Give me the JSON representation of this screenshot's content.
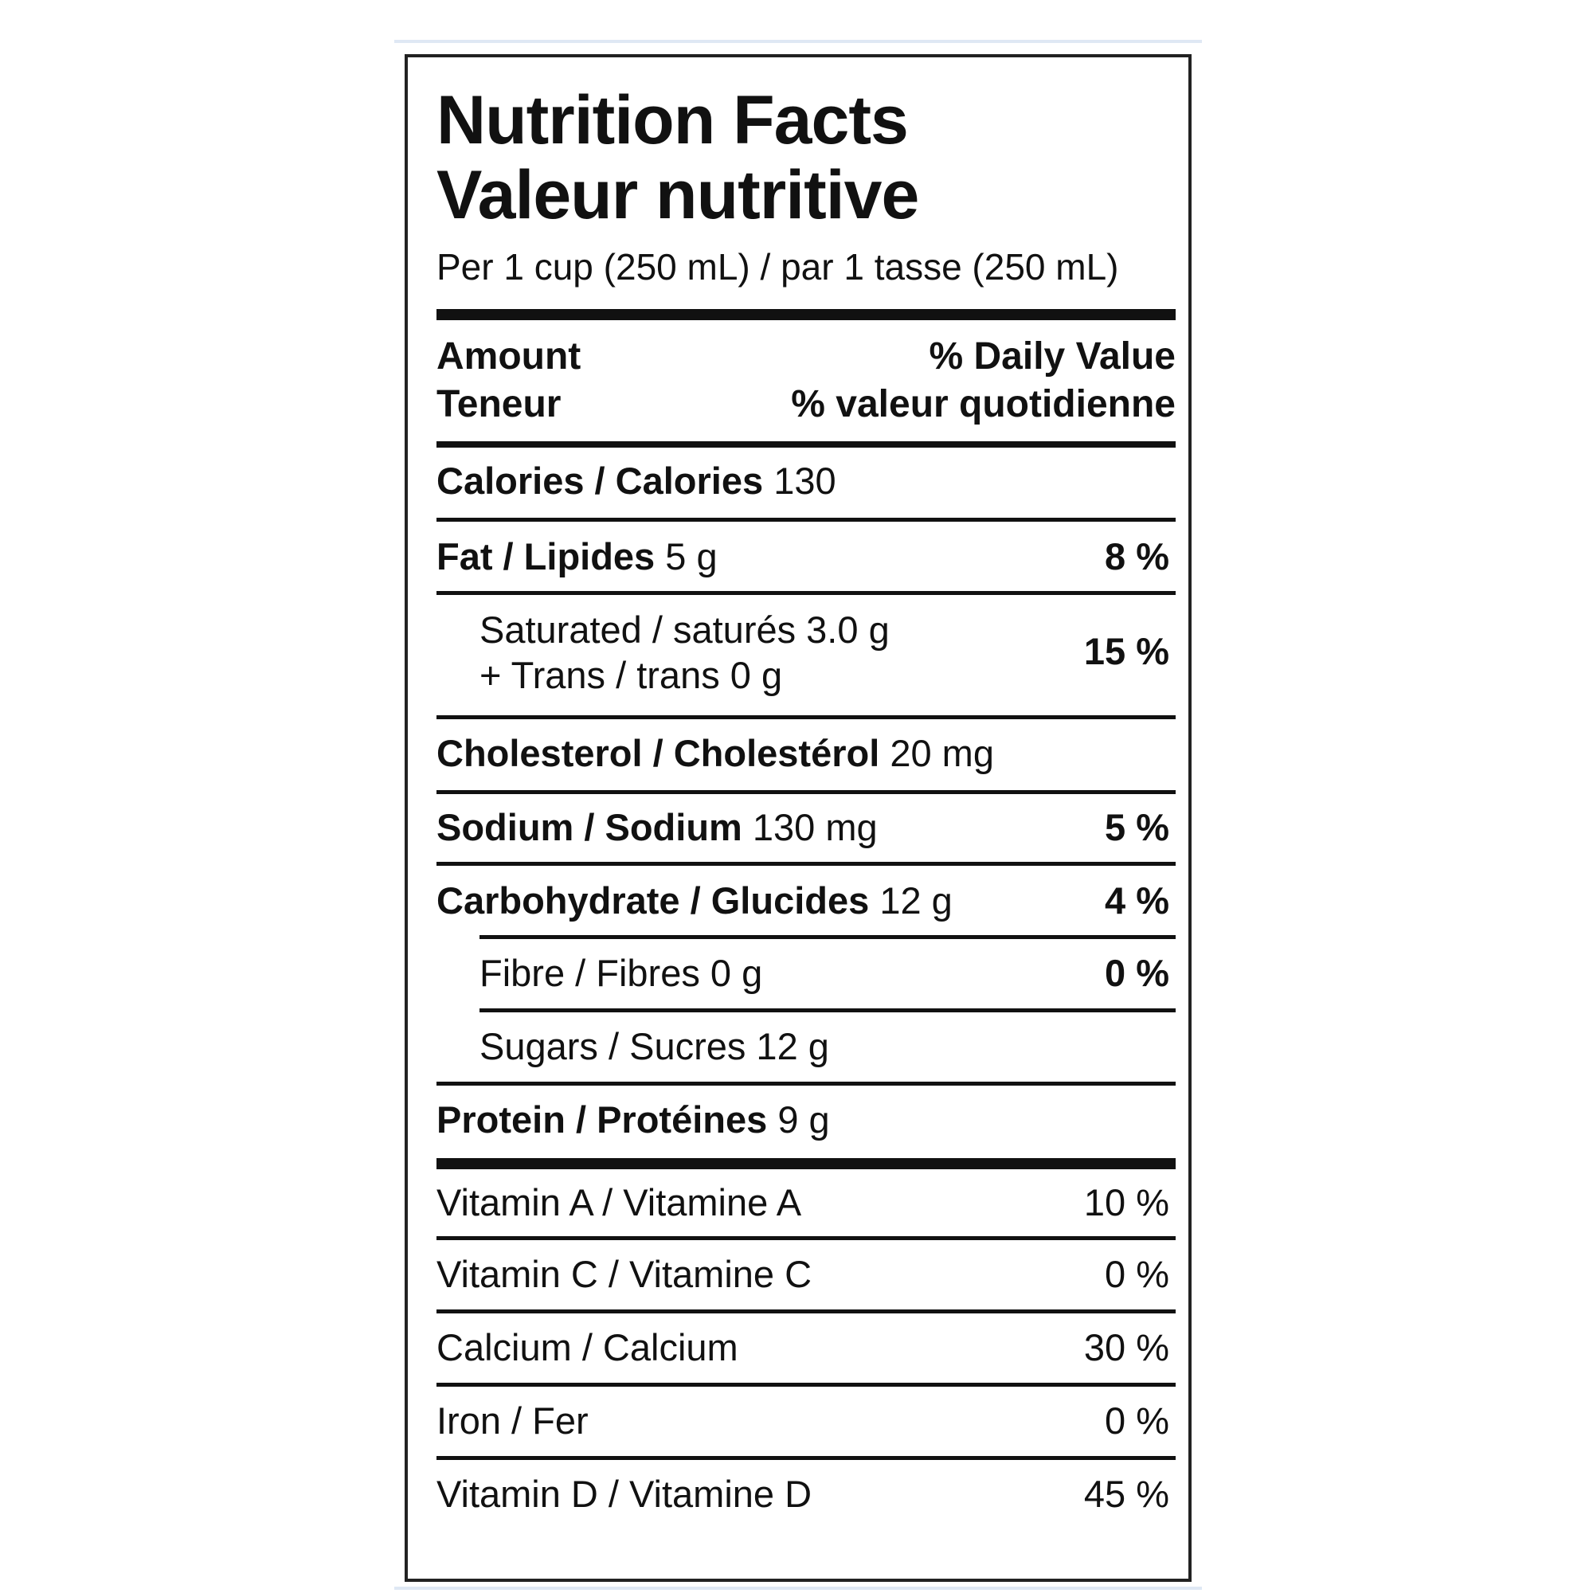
{
  "title_en": "Nutrition Facts",
  "title_fr": "Valeur nutritive",
  "serving": "Per 1 cup (250 mL) / par 1 tasse (250 mL)",
  "header": {
    "amount_en": "Amount",
    "amount_fr": "Teneur",
    "dv_en": "% Daily Value",
    "dv_fr": "% valeur quotidienne"
  },
  "nutrients": {
    "calories": {
      "label": "Calories / Calories",
      "amount": "130"
    },
    "fat": {
      "label": "Fat / Lipides",
      "amount": "5 g",
      "dv": "8 %"
    },
    "saturated": {
      "label": "Saturated / saturés 3.0 g",
      "trans": "+ Trans / trans 0 g",
      "dv": "15 %"
    },
    "cholesterol": {
      "label": "Cholesterol / Cholestérol",
      "amount": "20 mg"
    },
    "sodium": {
      "label": "Sodium / Sodium",
      "amount": "130 mg",
      "dv": "5 %"
    },
    "carbohydrate": {
      "label": "Carbohydrate / Glucides",
      "amount": "12 g",
      "dv": "4 %"
    },
    "fibre": {
      "label": "Fibre / Fibres 0 g",
      "dv": "0 %"
    },
    "sugars": {
      "label": "Sugars / Sucres 12 g"
    },
    "protein": {
      "label": "Protein / Protéines",
      "amount": "9 g"
    }
  },
  "vitamins": [
    {
      "label": "Vitamin A / Vitamine A",
      "dv": "10 %"
    },
    {
      "label": "Vitamin C / Vitamine C",
      "dv": "0 %"
    },
    {
      "label": "Calcium / Calcium",
      "dv": "30 %"
    },
    {
      "label": "Iron / Fer",
      "dv": "0 %"
    },
    {
      "label": "Vitamin D / Vitamine D",
      "dv": "45 %"
    }
  ]
}
